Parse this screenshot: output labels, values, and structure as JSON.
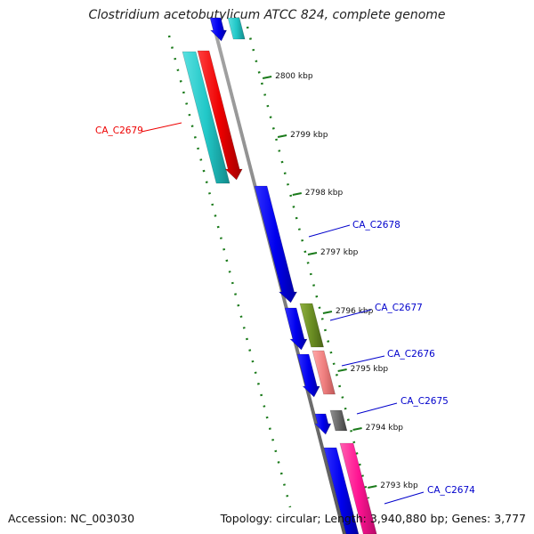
{
  "title": "Clostridium acetobutylicum ATCC 824, complete genome",
  "accession_line": "Accession: NC_003030",
  "summary_line": "Topology: circular; Length: 3,940,880 bp; Genes: 3,777",
  "colors": {
    "backbone": "#808080",
    "tick": "#1a7a1a",
    "blue_gene": "#0000ee",
    "cyan_gene": "#22c8c8",
    "red_gene": "#ee0000",
    "olive_gene": "#6b8e23",
    "salmon_gene": "#f08080",
    "gray_gene": "#696969",
    "magenta_gene": "#ff1493"
  },
  "scale_labels": [
    "2800 kbp",
    "2799 kbp",
    "2798 kbp",
    "2797 kbp",
    "2796 kbp",
    "2795 kbp",
    "2794 kbp",
    "2793 kbp"
  ],
  "gene_labels": [
    {
      "id": "CA_C2679",
      "color": "#ee0000"
    },
    {
      "id": "CA_C2678",
      "color": "#0000cc"
    },
    {
      "id": "CA_C2677",
      "color": "#0000cc"
    },
    {
      "id": "CA_C2676",
      "color": "#0000cc"
    },
    {
      "id": "CA_C2675",
      "color": "#0000cc"
    },
    {
      "id": "CA_C2674",
      "color": "#0000cc"
    }
  ]
}
